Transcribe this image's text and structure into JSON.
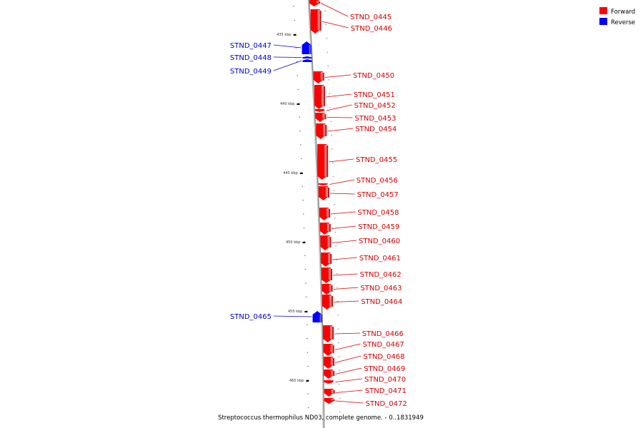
{
  "colors": {
    "forward": "#ff0000",
    "reverse": "#0000ff",
    "backbone": "#8c8c8c",
    "forward_label": "#d40000",
    "reverse_label": "#0000cc"
  },
  "legend": {
    "forward": "Forward",
    "reverse": "Reverse"
  },
  "caption": "Streptococcus thermophilus ND03, complete genome. - 0..1831949",
  "ruler": {
    "ticks": [
      "435 kbp",
      "440 kbp",
      "445 kbp",
      "450 kbp",
      "455 kbp",
      "460 kbp"
    ]
  },
  "genes": [
    {
      "id": "STND_0445",
      "strand": "forward"
    },
    {
      "id": "STND_0446",
      "strand": "forward"
    },
    {
      "id": "STND_0447",
      "strand": "reverse"
    },
    {
      "id": "STND_0448",
      "strand": "reverse"
    },
    {
      "id": "STND_0449",
      "strand": "reverse"
    },
    {
      "id": "STND_0450",
      "strand": "forward"
    },
    {
      "id": "STND_0451",
      "strand": "forward"
    },
    {
      "id": "STND_0452",
      "strand": "forward"
    },
    {
      "id": "STND_0453",
      "strand": "forward"
    },
    {
      "id": "STND_0454",
      "strand": "forward"
    },
    {
      "id": "STND_0455",
      "strand": "forward"
    },
    {
      "id": "STND_0456",
      "strand": "forward"
    },
    {
      "id": "STND_0457",
      "strand": "forward"
    },
    {
      "id": "STND_0458",
      "strand": "forward"
    },
    {
      "id": "STND_0459",
      "strand": "forward"
    },
    {
      "id": "STND_0460",
      "strand": "forward"
    },
    {
      "id": "STND_0461",
      "strand": "forward"
    },
    {
      "id": "STND_0462",
      "strand": "forward"
    },
    {
      "id": "STND_0463",
      "strand": "forward"
    },
    {
      "id": "STND_0464",
      "strand": "forward"
    },
    {
      "id": "STND_0465",
      "strand": "reverse"
    },
    {
      "id": "STND_0466",
      "strand": "forward"
    },
    {
      "id": "STND_0467",
      "strand": "forward"
    },
    {
      "id": "STND_0468",
      "strand": "forward"
    },
    {
      "id": "STND_0469",
      "strand": "forward"
    },
    {
      "id": "STND_0470",
      "strand": "forward"
    },
    {
      "id": "STND_0471",
      "strand": "forward"
    },
    {
      "id": "STND_0472",
      "strand": "forward"
    }
  ]
}
